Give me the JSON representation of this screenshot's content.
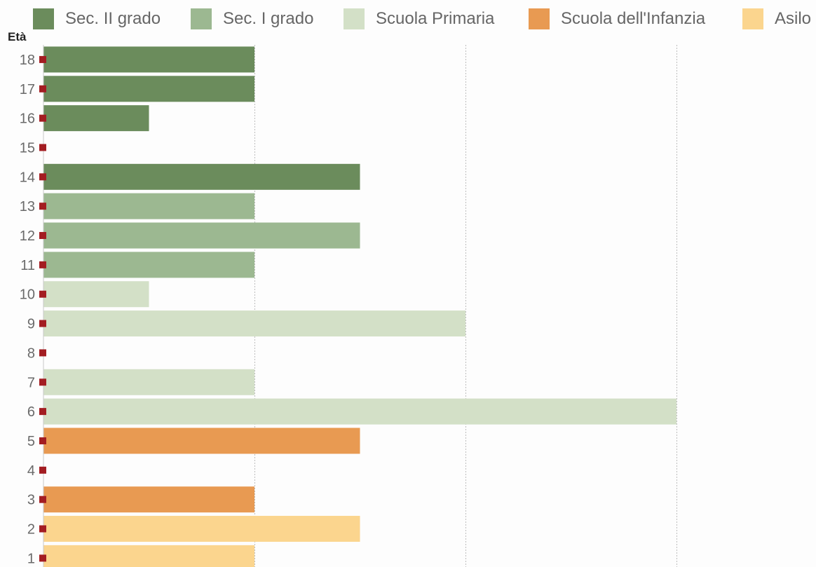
{
  "chart_data": {
    "type": "bar",
    "orientation": "horizontal",
    "title": "",
    "ylabel": "Età",
    "xlabel": "",
    "legend_position": "top",
    "grid": true,
    "categories": [
      "18",
      "17",
      "16",
      "15",
      "14",
      "13",
      "12",
      "11",
      "10",
      "9",
      "8",
      "7",
      "6",
      "5",
      "4",
      "3",
      "2",
      "1"
    ],
    "values": [
      2,
      2,
      1,
      0,
      3,
      2,
      3,
      2,
      1,
      4,
      0,
      2,
      6,
      3,
      0,
      2,
      3,
      2
    ],
    "bar_series": [
      "Sec. II grado",
      "Sec. II grado",
      "Sec. II grado",
      "Sec. II grado",
      "Sec. II grado",
      "Sec. I grado",
      "Sec. I grado",
      "Sec. I grado",
      "Scuola Primaria",
      "Scuola Primaria",
      "Scuola Primaria",
      "Scuola Primaria",
      "Scuola Primaria",
      "Scuola dell'Infanzia",
      "Scuola dell'Infanzia",
      "Scuola dell'Infanzia",
      "Asilo",
      "Asilo"
    ],
    "xlim": [
      0,
      7.5
    ],
    "legend": [
      {
        "name": "Sec. II grado",
        "color": "#6b8c5c"
      },
      {
        "name": "Sec. I grado",
        "color": "#9cb891"
      },
      {
        "name": "Scuola Primaria",
        "color": "#d3e0c7"
      },
      {
        "name": "Scuola dell'Infanzia",
        "color": "#e89a52"
      },
      {
        "name": "Asilo",
        "color": "#fbd58e"
      }
    ],
    "marker_color": "#a31d22"
  }
}
